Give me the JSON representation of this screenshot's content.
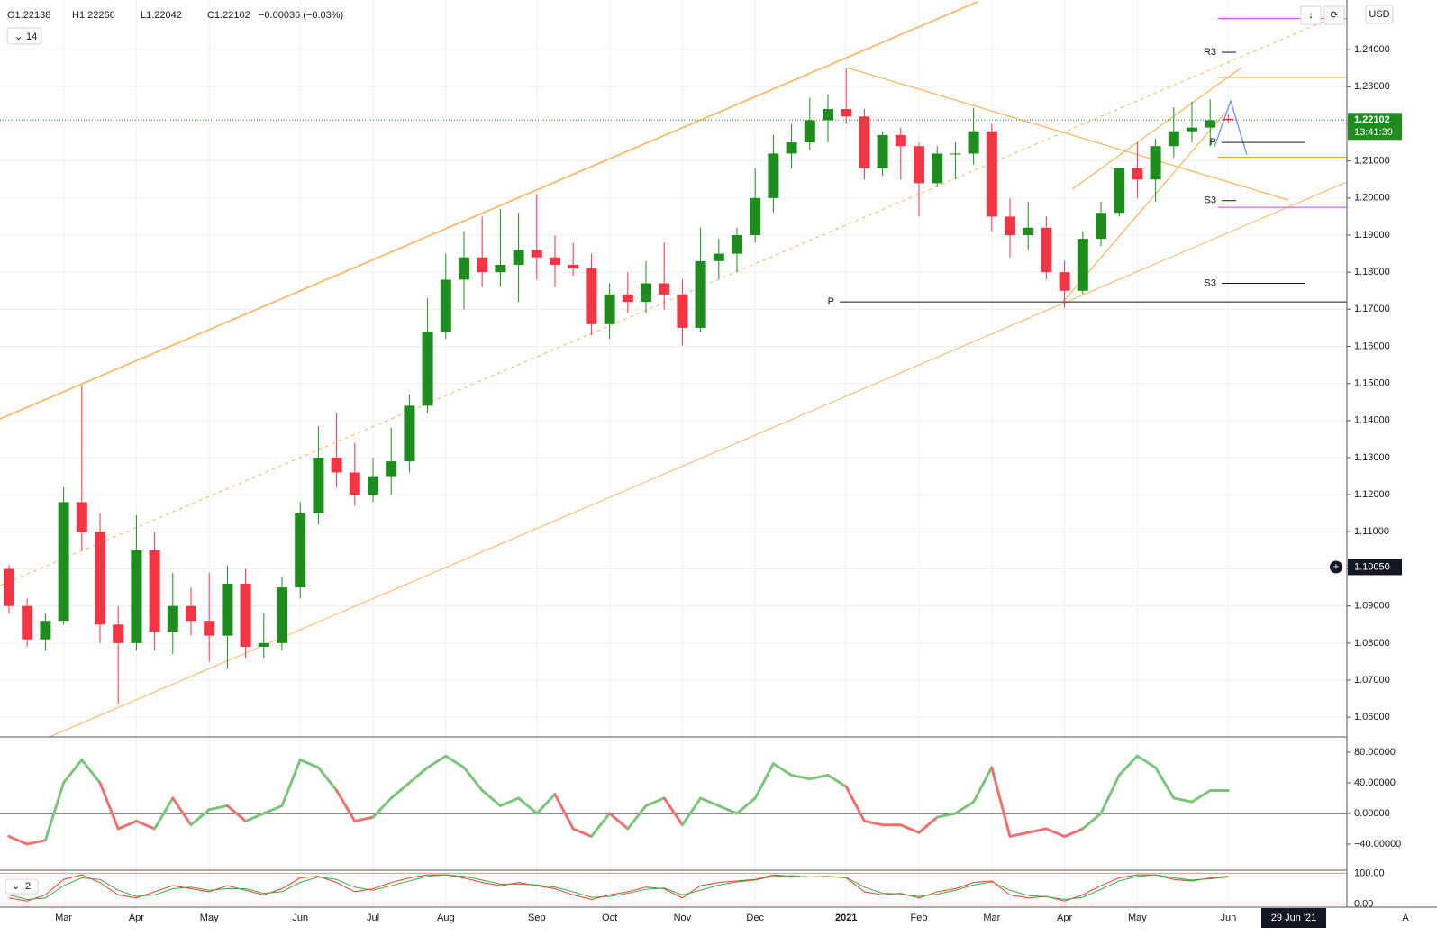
{
  "chart_data": {
    "type": "candlestick",
    "header": [
      "O1.22138",
      "H1.22266",
      "L1.22042",
      "C1.22102",
      "−0.00036 (−0.03%)"
    ],
    "indicator_length": "14",
    "pane_count": "2",
    "currency": "USD",
    "scale_mode": "A",
    "date_label": "29 Jun '21",
    "countdown": "13:41:39",
    "crosshair": {
      "value": 1.1005,
      "label": "1.10050"
    },
    "categories": [
      null,
      null,
      null,
      "Mar",
      null,
      null,
      null,
      "Apr",
      null,
      null,
      null,
      "May",
      null,
      null,
      null,
      null,
      "Jun",
      null,
      null,
      null,
      "Jul",
      null,
      null,
      null,
      "Aug",
      null,
      null,
      null,
      null,
      "Sep",
      null,
      null,
      null,
      "Oct",
      null,
      null,
      null,
      "Nov",
      null,
      null,
      null,
      "Dec",
      null,
      null,
      null,
      null,
      "2021",
      null,
      null,
      null,
      "Feb",
      null,
      null,
      null,
      "Mar",
      null,
      null,
      null,
      "Apr",
      null,
      null,
      null,
      "May",
      null,
      null,
      null,
      null,
      "Jun"
    ],
    "up_color": "#1e8c1e",
    "down_color": "#f23645",
    "open": [
      1.1,
      1.09,
      1.081,
      1.086,
      1.118,
      1.11,
      1.085,
      1.08,
      1.105,
      1.083,
      1.09,
      1.086,
      1.082,
      1.096,
      1.079,
      1.08,
      1.095,
      1.115,
      1.13,
      1.126,
      1.12,
      1.125,
      1.129,
      1.144,
      1.164,
      1.178,
      1.184,
      1.18,
      1.182,
      1.186,
      1.184,
      1.182,
      1.181,
      1.166,
      1.174,
      1.172,
      1.177,
      1.174,
      1.165,
      1.183,
      1.185,
      1.19,
      1.2,
      1.212,
      1.215,
      1.221,
      1.224,
      1.222,
      1.208,
      1.217,
      1.214,
      1.204,
      1.212,
      1.212,
      1.218,
      1.195,
      1.19,
      1.192,
      1.18,
      1.175,
      1.189,
      1.196,
      1.208,
      1.205,
      1.214,
      1.218,
      1.219,
      1.22138
    ],
    "high": [
      1.101,
      1.092,
      1.088,
      1.122,
      1.1495,
      1.115,
      1.09,
      1.1145,
      1.11,
      1.099,
      1.095,
      1.099,
      1.101,
      1.1,
      1.088,
      1.098,
      1.118,
      1.1385,
      1.142,
      1.134,
      1.13,
      1.138,
      1.147,
      1.173,
      1.185,
      1.191,
      1.195,
      1.197,
      1.196,
      1.2011,
      1.19,
      1.188,
      1.185,
      1.177,
      1.18,
      1.183,
      1.188,
      1.178,
      1.192,
      1.189,
      1.192,
      1.208,
      1.217,
      1.22,
      1.227,
      1.228,
      1.2349,
      1.224,
      1.218,
      1.219,
      1.215,
      1.214,
      1.215,
      1.2243,
      1.22,
      1.2,
      1.199,
      1.195,
      1.183,
      1.191,
      1.199,
      1.208,
      1.215,
      1.216,
      1.2245,
      1.226,
      1.2266,
      1.22266
    ],
    "low": [
      1.088,
      1.079,
      1.078,
      1.085,
      1.105,
      1.08,
      1.0636,
      1.078,
      1.078,
      1.077,
      1.082,
      1.075,
      1.073,
      1.076,
      1.076,
      1.078,
      1.092,
      1.112,
      1.122,
      1.117,
      1.118,
      1.12,
      1.126,
      1.142,
      1.162,
      1.17,
      1.176,
      1.176,
      1.172,
      1.178,
      1.176,
      1.179,
      1.163,
      1.162,
      1.169,
      1.169,
      1.17,
      1.1603,
      1.164,
      1.178,
      1.18,
      1.188,
      1.196,
      1.208,
      1.213,
      1.215,
      1.22,
      1.205,
      1.206,
      1.205,
      1.195,
      1.203,
      1.205,
      1.209,
      1.191,
      1.184,
      1.186,
      1.178,
      1.1704,
      1.174,
      1.187,
      1.195,
      1.2,
      1.199,
      1.211,
      1.215,
      1.214,
      1.22042
    ],
    "close": [
      1.09,
      1.081,
      1.086,
      1.118,
      1.11,
      1.085,
      1.08,
      1.105,
      1.083,
      1.09,
      1.086,
      1.082,
      1.096,
      1.079,
      1.08,
      1.095,
      1.115,
      1.13,
      1.126,
      1.12,
      1.125,
      1.129,
      1.144,
      1.164,
      1.178,
      1.184,
      1.18,
      1.182,
      1.186,
      1.184,
      1.182,
      1.181,
      1.166,
      1.174,
      1.172,
      1.177,
      1.174,
      1.165,
      1.183,
      1.185,
      1.19,
      1.2,
      1.212,
      1.215,
      1.221,
      1.224,
      1.222,
      1.208,
      1.217,
      1.214,
      1.204,
      1.212,
      1.212,
      1.218,
      1.195,
      1.19,
      1.192,
      1.18,
      1.175,
      1.189,
      1.196,
      1.208,
      1.205,
      1.214,
      1.218,
      1.219,
      1.221,
      1.22102
    ],
    "ylim": [
      1.0547,
      1.2534
    ],
    "yticks": [
      {
        "value": 1.06,
        "label": "1.06000"
      },
      {
        "value": 1.07,
        "label": "1.07000"
      },
      {
        "value": 1.08,
        "label": "1.08000"
      },
      {
        "value": 1.09,
        "label": "1.09000"
      },
      {
        "value": 1.1,
        "label": "1.10000"
      },
      {
        "value": 1.11,
        "label": "1.11000"
      },
      {
        "value": 1.12,
        "label": "1.12000"
      },
      {
        "value": 1.13,
        "label": "1.13000"
      },
      {
        "value": 1.14,
        "label": "1.14000"
      },
      {
        "value": 1.15,
        "label": "1.15000"
      },
      {
        "value": 1.16,
        "label": "1.16000"
      },
      {
        "value": 1.17,
        "label": "1.17000"
      },
      {
        "value": 1.18,
        "label": "1.18000"
      },
      {
        "value": 1.19,
        "label": "1.19000"
      },
      {
        "value": 1.2,
        "label": "1.20000"
      },
      {
        "value": 1.21,
        "label": "1.21000"
      },
      {
        "value": 1.22,
        "label": "1.22000"
      },
      {
        "value": 1.23,
        "label": "1.23000"
      },
      {
        "value": 1.24,
        "label": "1.24000"
      }
    ],
    "grid": true,
    "levels": [
      {
        "label": "R3",
        "value": 1.2393
      },
      {
        "label": "P",
        "value": 1.215
      },
      {
        "label": "S3",
        "value": 1.1993
      },
      {
        "label": "S3",
        "value": 1.177
      },
      {
        "label": "P",
        "value": 1.172
      }
    ],
    "hlines": [
      {
        "value": 1.2484,
        "color": "#e040fb"
      },
      {
        "value": 1.2325,
        "color": "#f7a440"
      },
      {
        "value": 1.211,
        "color": "#f7a440"
      },
      {
        "value": 1.1975,
        "color": "#e040fb"
      }
    ],
    "oscillator": {
      "pos_color": "#7cc47c",
      "neg_color": "#ef7070",
      "ylim": [
        -73,
        97.6
      ],
      "yticks": [
        {
          "value": 80,
          "label": "80.00000"
        },
        {
          "value": 40,
          "label": "40.00000"
        },
        {
          "value": 0,
          "label": "0.00000"
        },
        {
          "value": -40,
          "label": "−40.00000"
        }
      ],
      "values": [
        -30,
        -40,
        -35,
        40,
        70,
        40,
        -20,
        -10,
        -20,
        20,
        -15,
        5,
        10,
        -10,
        0,
        10,
        70,
        60,
        30,
        -10,
        -5,
        20,
        40,
        60,
        75,
        60,
        30,
        10,
        20,
        0,
        25,
        -20,
        -30,
        0,
        -20,
        10,
        20,
        -15,
        20,
        10,
        0,
        20,
        65,
        50,
        45,
        50,
        35,
        -10,
        -15,
        -15,
        -25,
        -5,
        0,
        15,
        60,
        -30,
        -25,
        -20,
        -30,
        -20,
        0,
        50,
        75,
        60,
        20,
        15,
        30,
        30
      ]
    },
    "stoch": {
      "ylim": [
        -4,
        104
      ],
      "yticks": [
        {
          "value": 100,
          "label": "100.00"
        },
        {
          "value": 0,
          "label": "0.00"
        }
      ],
      "series": [
        {
          "color": "#e8412f",
          "values": [
            20,
            10,
            30,
            80,
            95,
            70,
            30,
            20,
            40,
            60,
            50,
            40,
            60,
            45,
            30,
            50,
            85,
            90,
            70,
            40,
            50,
            70,
            85,
            95,
            95,
            85,
            70,
            60,
            70,
            60,
            50,
            30,
            15,
            30,
            40,
            55,
            50,
            20,
            60,
            70,
            75,
            80,
            95,
            90,
            88,
            90,
            85,
            40,
            30,
            35,
            20,
            40,
            50,
            70,
            75,
            30,
            20,
            25,
            10,
            30,
            60,
            85,
            95,
            95,
            80,
            75,
            85,
            90
          ]
        },
        {
          "color": "#3ea83e",
          "values": [
            30,
            15,
            20,
            60,
            85,
            80,
            45,
            25,
            30,
            50,
            55,
            45,
            50,
            50,
            35,
            40,
            70,
            88,
            80,
            55,
            45,
            60,
            75,
            90,
            95,
            90,
            78,
            65,
            65,
            62,
            55,
            40,
            22,
            25,
            35,
            48,
            52,
            30,
            45,
            62,
            72,
            78,
            90,
            92,
            88,
            89,
            87,
            55,
            35,
            33,
            25,
            32,
            45,
            62,
            72,
            45,
            28,
            24,
            15,
            22,
            48,
            75,
            90,
            95,
            85,
            78,
            82,
            88
          ]
        }
      ]
    }
  }
}
